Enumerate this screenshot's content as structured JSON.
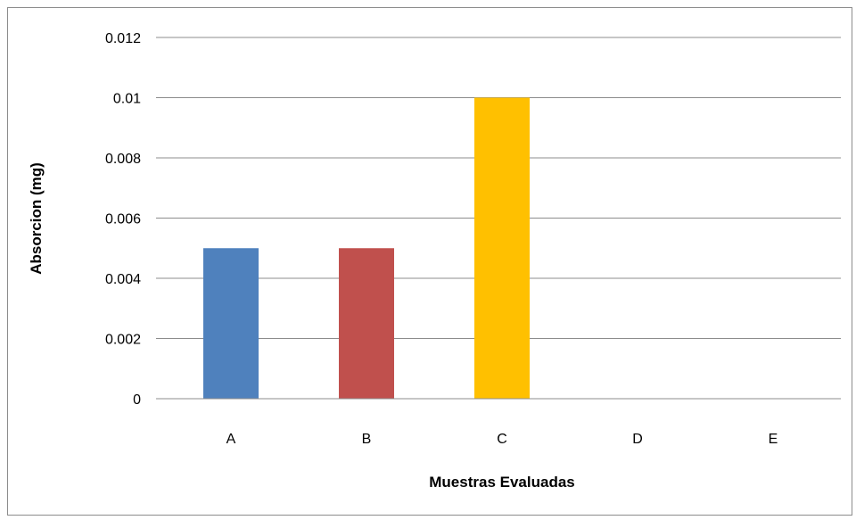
{
  "chart_data": {
    "type": "bar",
    "title": "",
    "xlabel": "Muestras Evaluadas",
    "ylabel": "Absorcion (mg)",
    "categories": [
      "A",
      "B",
      "C",
      "D",
      "E"
    ],
    "values": [
      0.005,
      0.005,
      0.01,
      0,
      0
    ],
    "colors": [
      "#4f81bd",
      "#c0504d",
      "#ffc000",
      "#9bbb59",
      "#8064a2"
    ],
    "ylim": [
      0,
      0.012
    ],
    "yticks": [
      "0",
      "0.002",
      "0.004",
      "0.006",
      "0.008",
      "0.01",
      "0.012"
    ],
    "grid": true,
    "legend": "none"
  }
}
